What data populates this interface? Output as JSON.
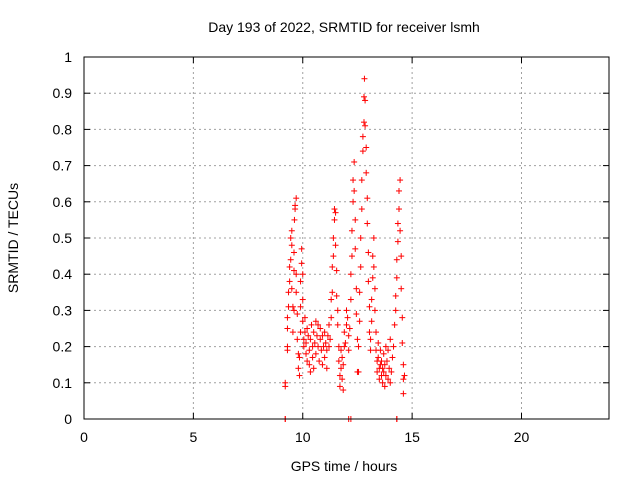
{
  "chart_data": {
    "type": "scatter",
    "title": "Day 193 of 2022, SRMTID for receiver lsmh",
    "xlabel": "GPS time / hours",
    "ylabel": "SRMTID / TECUs",
    "xlim": [
      0,
      24
    ],
    "ylim": [
      0,
      1
    ],
    "x_ticks": [
      0,
      5,
      10,
      15,
      20
    ],
    "x_tick_labels": [
      "0",
      "5",
      "10",
      "15",
      "20"
    ],
    "y_ticks": [
      0,
      0.1,
      0.2,
      0.3,
      0.4,
      0.5,
      0.6,
      0.7,
      0.8,
      0.9,
      1
    ],
    "y_tick_labels": [
      "0",
      "0.1",
      "0.2",
      "0.3",
      "0.4",
      "0.5",
      "0.6",
      "0.7",
      "0.8",
      "0.9",
      "1"
    ],
    "grid": true,
    "marker": "+",
    "colors": {
      "points": "#ff0000",
      "grid": "#a0a0a0",
      "axis": "#000000"
    },
    "series": [
      {
        "name": "lsmh",
        "points": [
          [
            9.2,
            0.0
          ],
          [
            9.2,
            0.0
          ],
          [
            12.1,
            0.0
          ],
          [
            12.2,
            0.0
          ],
          [
            14.3,
            0.0
          ],
          [
            14.3,
            0.0
          ],
          [
            9.2,
            0.09
          ],
          [
            9.2,
            0.1
          ],
          [
            9.3,
            0.19
          ],
          [
            9.3,
            0.2
          ],
          [
            9.3,
            0.25
          ],
          [
            9.3,
            0.28
          ],
          [
            9.35,
            0.31
          ],
          [
            9.35,
            0.35
          ],
          [
            9.4,
            0.38
          ],
          [
            9.4,
            0.42
          ],
          [
            9.45,
            0.44
          ],
          [
            9.45,
            0.5
          ],
          [
            9.5,
            0.52
          ],
          [
            9.5,
            0.48
          ],
          [
            9.5,
            0.36
          ],
          [
            9.55,
            0.31
          ],
          [
            9.55,
            0.24
          ],
          [
            9.6,
            0.3
          ],
          [
            9.6,
            0.41
          ],
          [
            9.6,
            0.46
          ],
          [
            9.62,
            0.55
          ],
          [
            9.65,
            0.58
          ],
          [
            9.65,
            0.59
          ],
          [
            9.7,
            0.61
          ],
          [
            9.7,
            0.4
          ],
          [
            9.7,
            0.35
          ],
          [
            9.75,
            0.29
          ],
          [
            9.75,
            0.22
          ],
          [
            9.8,
            0.18
          ],
          [
            9.8,
            0.14
          ],
          [
            9.85,
            0.12
          ],
          [
            9.85,
            0.17
          ],
          [
            9.9,
            0.24
          ],
          [
            9.9,
            0.31
          ],
          [
            9.9,
            0.38
          ],
          [
            9.95,
            0.43
          ],
          [
            9.95,
            0.47
          ],
          [
            10.0,
            0.4
          ],
          [
            10.0,
            0.33
          ],
          [
            10.0,
            0.27
          ],
          [
            10.05,
            0.22
          ],
          [
            10.05,
            0.2
          ],
          [
            10.1,
            0.24
          ],
          [
            10.1,
            0.28
          ],
          [
            10.15,
            0.21
          ],
          [
            10.15,
            0.18
          ],
          [
            10.2,
            0.16
          ],
          [
            10.2,
            0.25
          ],
          [
            10.25,
            0.23
          ],
          [
            10.3,
            0.19
          ],
          [
            10.3,
            0.15
          ],
          [
            10.35,
            0.13
          ],
          [
            10.35,
            0.22
          ],
          [
            10.4,
            0.26
          ],
          [
            10.45,
            0.2
          ],
          [
            10.45,
            0.17
          ],
          [
            10.5,
            0.14
          ],
          [
            10.5,
            0.24
          ],
          [
            10.55,
            0.21
          ],
          [
            10.6,
            0.27
          ],
          [
            10.6,
            0.18
          ],
          [
            10.65,
            0.23
          ],
          [
            10.7,
            0.26
          ],
          [
            10.7,
            0.2
          ],
          [
            10.75,
            0.16
          ],
          [
            10.8,
            0.22
          ],
          [
            10.8,
            0.25
          ],
          [
            10.85,
            0.19
          ],
          [
            10.9,
            0.15
          ],
          [
            10.9,
            0.23
          ],
          [
            10.95,
            0.2
          ],
          [
            11.0,
            0.17
          ],
          [
            11.0,
            0.24
          ],
          [
            11.05,
            0.21
          ],
          [
            11.1,
            0.14
          ],
          [
            11.1,
            0.19
          ],
          [
            11.15,
            0.23
          ],
          [
            11.2,
            0.26
          ],
          [
            11.2,
            0.2
          ],
          [
            11.25,
            0.22
          ],
          [
            11.3,
            0.28
          ],
          [
            11.3,
            0.33
          ],
          [
            11.35,
            0.35
          ],
          [
            11.35,
            0.42
          ],
          [
            11.4,
            0.45
          ],
          [
            11.4,
            0.5
          ],
          [
            11.45,
            0.55
          ],
          [
            11.45,
            0.58
          ],
          [
            11.5,
            0.57
          ],
          [
            11.5,
            0.48
          ],
          [
            11.55,
            0.41
          ],
          [
            11.55,
            0.34
          ],
          [
            11.6,
            0.3
          ],
          [
            11.6,
            0.26
          ],
          [
            11.65,
            0.2
          ],
          [
            11.65,
            0.16
          ],
          [
            11.7,
            0.12
          ],
          [
            11.7,
            0.09
          ],
          [
            11.75,
            0.14
          ],
          [
            11.75,
            0.19
          ],
          [
            11.8,
            0.17
          ],
          [
            11.8,
            0.11
          ],
          [
            11.85,
            0.08
          ],
          [
            11.85,
            0.15
          ],
          [
            11.9,
            0.2
          ],
          [
            11.9,
            0.24
          ],
          [
            11.95,
            0.21
          ],
          [
            12.0,
            0.26
          ],
          [
            12.0,
            0.3
          ],
          [
            12.05,
            0.28
          ],
          [
            12.1,
            0.23
          ],
          [
            12.1,
            0.19
          ],
          [
            12.15,
            0.25
          ],
          [
            12.2,
            0.33
          ],
          [
            12.2,
            0.4
          ],
          [
            12.25,
            0.45
          ],
          [
            12.25,
            0.52
          ],
          [
            12.3,
            0.6
          ],
          [
            12.3,
            0.66
          ],
          [
            12.35,
            0.71
          ],
          [
            12.35,
            0.63
          ],
          [
            12.4,
            0.55
          ],
          [
            12.4,
            0.47
          ],
          [
            12.45,
            0.36
          ],
          [
            12.45,
            0.29
          ],
          [
            12.5,
            0.22
          ],
          [
            12.5,
            0.13
          ],
          [
            12.55,
            0.13
          ],
          [
            12.55,
            0.2
          ],
          [
            12.6,
            0.27
          ],
          [
            12.6,
            0.35
          ],
          [
            12.65,
            0.42
          ],
          [
            12.65,
            0.5
          ],
          [
            12.7,
            0.58
          ],
          [
            12.7,
            0.66
          ],
          [
            12.75,
            0.74
          ],
          [
            12.75,
            0.78
          ],
          [
            12.8,
            0.82
          ],
          [
            12.8,
            0.89
          ],
          [
            12.82,
            0.94
          ],
          [
            12.85,
            0.88
          ],
          [
            12.85,
            0.81
          ],
          [
            12.9,
            0.75
          ],
          [
            12.9,
            0.68
          ],
          [
            12.95,
            0.61
          ],
          [
            12.95,
            0.54
          ],
          [
            13.0,
            0.46
          ],
          [
            13.0,
            0.38
          ],
          [
            13.05,
            0.31
          ],
          [
            13.05,
            0.24
          ],
          [
            13.1,
            0.19
          ],
          [
            13.1,
            0.22
          ],
          [
            13.15,
            0.27
          ],
          [
            13.15,
            0.33
          ],
          [
            13.2,
            0.39
          ],
          [
            13.2,
            0.45
          ],
          [
            13.25,
            0.5
          ],
          [
            13.25,
            0.42
          ],
          [
            13.3,
            0.36
          ],
          [
            13.3,
            0.3
          ],
          [
            13.35,
            0.24
          ],
          [
            13.35,
            0.19
          ],
          [
            13.4,
            0.16
          ],
          [
            13.4,
            0.13
          ],
          [
            13.45,
            0.17
          ],
          [
            13.45,
            0.21
          ],
          [
            13.5,
            0.14
          ],
          [
            13.5,
            0.11
          ],
          [
            13.55,
            0.15
          ],
          [
            13.55,
            0.19
          ],
          [
            13.6,
            0.12
          ],
          [
            13.6,
            0.16
          ],
          [
            13.65,
            0.1
          ],
          [
            13.65,
            0.14
          ],
          [
            13.7,
            0.18
          ],
          [
            13.7,
            0.13
          ],
          [
            13.75,
            0.09
          ],
          [
            13.75,
            0.15
          ],
          [
            13.8,
            0.2
          ],
          [
            13.8,
            0.12
          ],
          [
            13.85,
            0.16
          ],
          [
            13.9,
            0.11
          ],
          [
            13.9,
            0.19
          ],
          [
            13.95,
            0.14
          ],
          [
            14.0,
            0.22
          ],
          [
            14.0,
            0.1
          ],
          [
            14.05,
            0.13
          ],
          [
            14.1,
            0.17
          ],
          [
            14.15,
            0.2
          ],
          [
            14.2,
            0.26
          ],
          [
            14.25,
            0.3
          ],
          [
            14.25,
            0.34
          ],
          [
            14.3,
            0.39
          ],
          [
            14.3,
            0.44
          ],
          [
            14.35,
            0.49
          ],
          [
            14.35,
            0.54
          ],
          [
            14.4,
            0.58
          ],
          [
            14.4,
            0.63
          ],
          [
            14.45,
            0.66
          ],
          [
            14.45,
            0.52
          ],
          [
            14.5,
            0.45
          ],
          [
            14.5,
            0.36
          ],
          [
            14.55,
            0.28
          ],
          [
            14.55,
            0.21
          ],
          [
            14.6,
            0.15
          ],
          [
            14.6,
            0.11
          ],
          [
            14.6,
            0.07
          ],
          [
            14.65,
            0.12
          ]
        ]
      }
    ]
  }
}
